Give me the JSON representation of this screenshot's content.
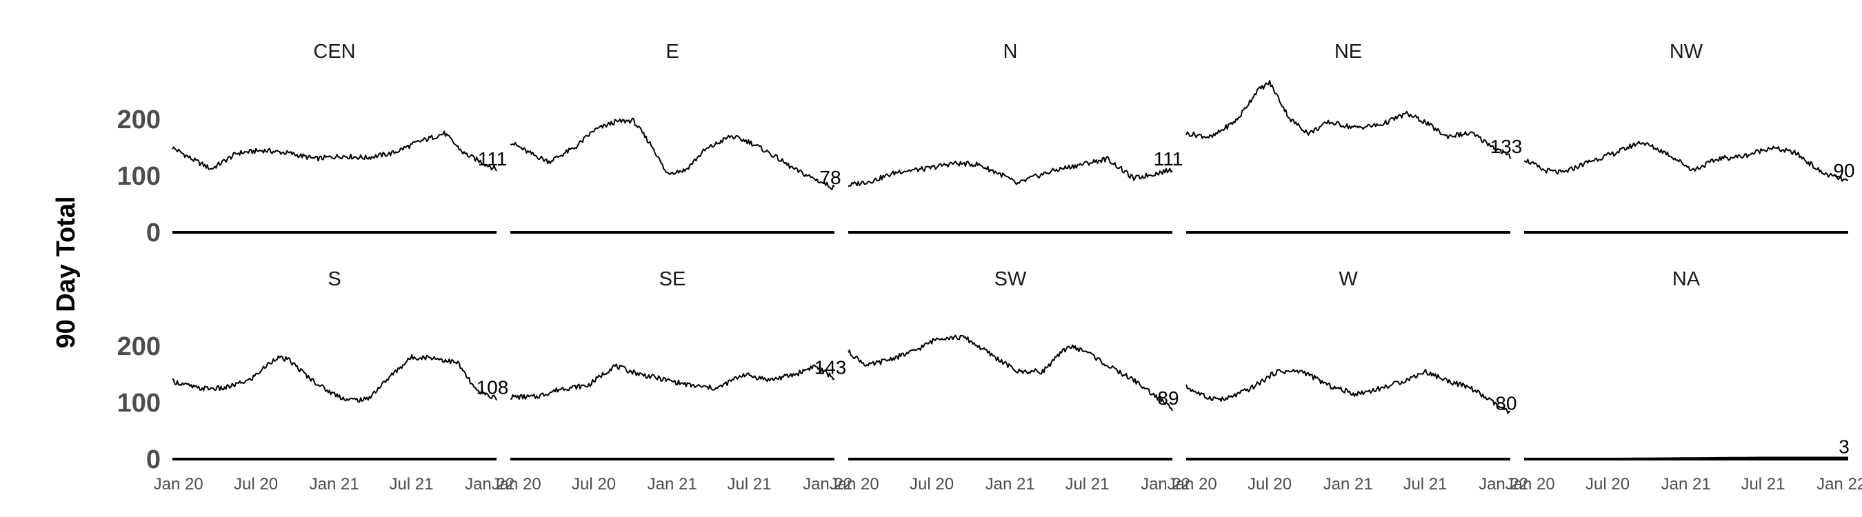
{
  "chart_data": {
    "type": "line",
    "ylabel": "90 Day Total",
    "xlim": [
      "2020-01-01",
      "2022-01-31"
    ],
    "ylim": [
      0,
      300
    ],
    "x_ticks": [
      {
        "date": "2020-01-15",
        "label": "Jan 20"
      },
      {
        "date": "2020-07-15",
        "label": "Jul 20"
      },
      {
        "date": "2021-01-15",
        "label": "Jan 21"
      },
      {
        "date": "2021-07-15",
        "label": "Jul 21"
      },
      {
        "date": "2022-01-15",
        "label": "Jan 22"
      }
    ],
    "y_ticks": [
      0,
      100,
      200
    ],
    "grid": false,
    "line_color": "#000000",
    "panels": [
      {
        "name": "CEN",
        "end_label": "111",
        "points": [
          [
            "2020-01-01",
            150
          ],
          [
            "2020-02-15",
            130
          ],
          [
            "2020-04-01",
            112
          ],
          [
            "2020-06-01",
            140
          ],
          [
            "2020-08-01",
            145
          ],
          [
            "2020-10-01",
            140
          ],
          [
            "2020-12-01",
            130
          ],
          [
            "2021-02-01",
            135
          ],
          [
            "2021-04-01",
            132
          ],
          [
            "2021-06-01",
            140
          ],
          [
            "2021-08-01",
            160
          ],
          [
            "2021-10-01",
            175
          ],
          [
            "2021-11-15",
            140
          ],
          [
            "2022-01-31",
            111
          ]
        ]
      },
      {
        "name": "E",
        "end_label": "78",
        "points": [
          [
            "2020-01-01",
            160
          ],
          [
            "2020-02-15",
            140
          ],
          [
            "2020-04-01",
            125
          ],
          [
            "2020-06-01",
            150
          ],
          [
            "2020-07-15",
            180
          ],
          [
            "2020-09-01",
            195
          ],
          [
            "2020-10-15",
            198
          ],
          [
            "2020-12-01",
            150
          ],
          [
            "2021-01-01",
            105
          ],
          [
            "2021-02-15",
            110
          ],
          [
            "2021-04-01",
            145
          ],
          [
            "2021-06-01",
            170
          ],
          [
            "2021-07-15",
            160
          ],
          [
            "2021-09-01",
            140
          ],
          [
            "2021-11-01",
            110
          ],
          [
            "2022-01-31",
            78
          ]
        ]
      },
      {
        "name": "N",
        "end_label": "111",
        "points": [
          [
            "2020-01-01",
            83
          ],
          [
            "2020-03-01",
            92
          ],
          [
            "2020-05-01",
            108
          ],
          [
            "2020-07-01",
            112
          ],
          [
            "2020-09-01",
            122
          ],
          [
            "2020-11-01",
            120
          ],
          [
            "2021-01-01",
            100
          ],
          [
            "2021-02-01",
            85
          ],
          [
            "2021-03-01",
            95
          ],
          [
            "2021-05-01",
            110
          ],
          [
            "2021-07-01",
            120
          ],
          [
            "2021-09-01",
            130
          ],
          [
            "2021-11-01",
            95
          ],
          [
            "2022-01-31",
            111
          ]
        ]
      },
      {
        "name": "NE",
        "end_label": "133",
        "points": [
          [
            "2020-01-01",
            175
          ],
          [
            "2020-03-01",
            168
          ],
          [
            "2020-05-01",
            200
          ],
          [
            "2020-06-15",
            250
          ],
          [
            "2020-07-15",
            265
          ],
          [
            "2020-09-01",
            200
          ],
          [
            "2020-10-15",
            175
          ],
          [
            "2020-12-01",
            195
          ],
          [
            "2021-02-01",
            185
          ],
          [
            "2021-04-01",
            190
          ],
          [
            "2021-06-01",
            210
          ],
          [
            "2021-07-15",
            195
          ],
          [
            "2021-09-01",
            170
          ],
          [
            "2021-11-01",
            175
          ],
          [
            "2022-01-31",
            133
          ]
        ]
      },
      {
        "name": "NW",
        "end_label": "90",
        "points": [
          [
            "2020-01-01",
            130
          ],
          [
            "2020-02-15",
            110
          ],
          [
            "2020-04-01",
            105
          ],
          [
            "2020-06-01",
            125
          ],
          [
            "2020-08-01",
            140
          ],
          [
            "2020-10-01",
            160
          ],
          [
            "2020-12-01",
            140
          ],
          [
            "2021-02-01",
            110
          ],
          [
            "2021-04-01",
            130
          ],
          [
            "2021-06-01",
            135
          ],
          [
            "2021-08-01",
            150
          ],
          [
            "2021-10-01",
            140
          ],
          [
            "2021-12-01",
            105
          ],
          [
            "2022-01-31",
            90
          ]
        ]
      },
      {
        "name": "S",
        "end_label": "108",
        "points": [
          [
            "2020-01-01",
            138
          ],
          [
            "2020-03-01",
            125
          ],
          [
            "2020-05-01",
            125
          ],
          [
            "2020-07-01",
            140
          ],
          [
            "2020-09-01",
            180
          ],
          [
            "2020-10-01",
            175
          ],
          [
            "2020-11-15",
            145
          ],
          [
            "2021-01-01",
            120
          ],
          [
            "2021-02-15",
            105
          ],
          [
            "2021-04-01",
            105
          ],
          [
            "2021-06-01",
            150
          ],
          [
            "2021-07-15",
            180
          ],
          [
            "2021-09-01",
            180
          ],
          [
            "2021-11-01",
            170
          ],
          [
            "2021-12-15",
            120
          ],
          [
            "2022-01-31",
            108
          ]
        ]
      },
      {
        "name": "SE",
        "end_label": "143",
        "points": [
          [
            "2020-01-01",
            110
          ],
          [
            "2020-03-01",
            110
          ],
          [
            "2020-05-01",
            125
          ],
          [
            "2020-07-01",
            130
          ],
          [
            "2020-09-01",
            165
          ],
          [
            "2020-11-01",
            150
          ],
          [
            "2021-01-01",
            140
          ],
          [
            "2021-03-01",
            130
          ],
          [
            "2021-05-01",
            125
          ],
          [
            "2021-07-01",
            150
          ],
          [
            "2021-09-01",
            140
          ],
          [
            "2021-11-01",
            150
          ],
          [
            "2021-12-15",
            165
          ],
          [
            "2022-01-31",
            143
          ]
        ]
      },
      {
        "name": "SW",
        "end_label": "89",
        "points": [
          [
            "2020-01-01",
            190
          ],
          [
            "2020-02-15",
            165
          ],
          [
            "2020-04-01",
            175
          ],
          [
            "2020-06-01",
            190
          ],
          [
            "2020-08-01",
            215
          ],
          [
            "2020-10-01",
            215
          ],
          [
            "2020-12-01",
            185
          ],
          [
            "2021-02-01",
            155
          ],
          [
            "2021-04-01",
            155
          ],
          [
            "2021-06-01",
            200
          ],
          [
            "2021-07-15",
            190
          ],
          [
            "2021-09-01",
            165
          ],
          [
            "2021-11-01",
            140
          ],
          [
            "2022-01-31",
            89
          ]
        ]
      },
      {
        "name": "W",
        "end_label": "80",
        "points": [
          [
            "2020-01-01",
            128
          ],
          [
            "2020-02-15",
            110
          ],
          [
            "2020-04-01",
            105
          ],
          [
            "2020-06-01",
            125
          ],
          [
            "2020-08-01",
            155
          ],
          [
            "2020-10-01",
            155
          ],
          [
            "2020-12-01",
            130
          ],
          [
            "2021-02-01",
            115
          ],
          [
            "2021-04-01",
            125
          ],
          [
            "2021-06-01",
            140
          ],
          [
            "2021-07-15",
            155
          ],
          [
            "2021-09-01",
            140
          ],
          [
            "2021-11-01",
            125
          ],
          [
            "2022-01-31",
            80
          ]
        ]
      },
      {
        "name": "NA",
        "end_label": "3",
        "points": [
          [
            "2020-01-01",
            0
          ],
          [
            "2020-07-01",
            1
          ],
          [
            "2021-01-01",
            2
          ],
          [
            "2021-07-01",
            3
          ],
          [
            "2022-01-31",
            3
          ]
        ]
      }
    ]
  }
}
